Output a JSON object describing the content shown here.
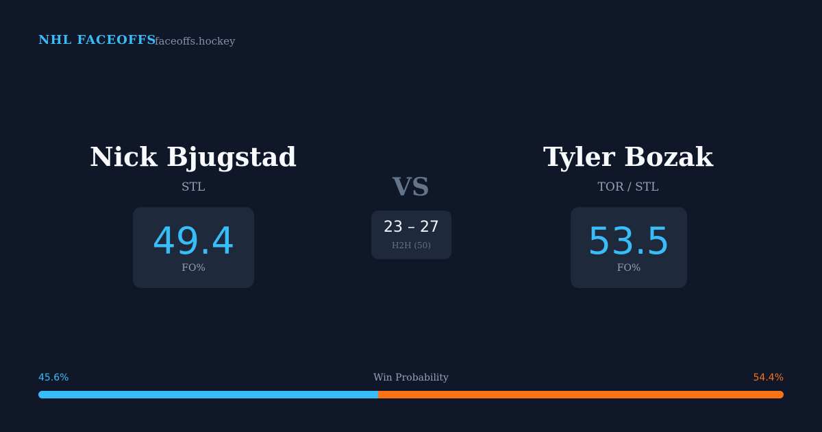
{
  "header": {
    "brand": "NHL FACEOFFS",
    "site": "faceoffs.hockey"
  },
  "players": [
    {
      "name": "Nick Bjugstad",
      "team": "STL",
      "fo_pct": 49.4,
      "fo_label": "FO%"
    },
    {
      "name": "Tyler Bozak",
      "team": "TOR / STL",
      "fo_pct": 53.5,
      "fo_label": "FO%"
    }
  ],
  "vs": "VS",
  "h2h": {
    "score": "23 – 27",
    "label": "H2H (50)"
  },
  "win_probability": {
    "title": "Win Probability",
    "values": [
      45.6,
      54.4
    ],
    "value_labels": [
      "45.6%",
      "54.4%"
    ],
    "colors": [
      "#38bdf8",
      "#f97316"
    ]
  }
}
